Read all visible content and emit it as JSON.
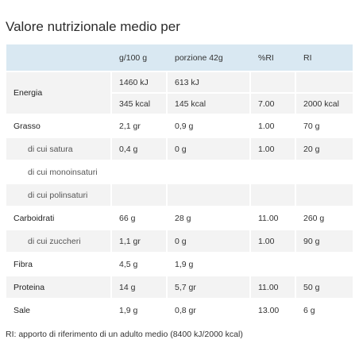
{
  "title": "Valore nutrizionale medio per",
  "table": {
    "header": [
      null,
      "g/100 g",
      "porzione 42g",
      "%RI",
      "RI"
    ],
    "rows": [
      [
        "Energia",
        "1460 kJ",
        "613 kJ",
        null,
        null
      ],
      [
        null,
        "345 kcal",
        "145 kcal",
        "7.00",
        "2000 kcal"
      ],
      [
        "Grasso",
        "2,1 gr",
        "0,9 g",
        "1.00",
        "70 g"
      ],
      [
        "di cui satura",
        "0,4 g",
        "0 g",
        "1.00",
        "20 g"
      ],
      [
        "di cui monoinsaturi",
        null,
        null,
        null,
        null
      ],
      [
        "di cui polinsaturi",
        null,
        null,
        null,
        null
      ],
      [
        "Carboidrati",
        "66 g",
        "28 g",
        "11.00",
        "260 g"
      ],
      [
        "di cui zuccheri",
        "1,1 gr",
        "0 g",
        "1.00",
        "90 g"
      ],
      [
        "Fibra",
        "4,5 g",
        "1,9 g",
        null,
        null
      ],
      [
        "Proteina",
        "14 g",
        "5,7 gr",
        "11.00",
        "50 g"
      ],
      [
        "Sale",
        "1,9 g",
        "0,8 gr",
        "13.00",
        "6 g"
      ]
    ]
  },
  "footnote": "RI: apporto di riferimento di un adulto medio (8400 kJ/2000 kcal)"
}
